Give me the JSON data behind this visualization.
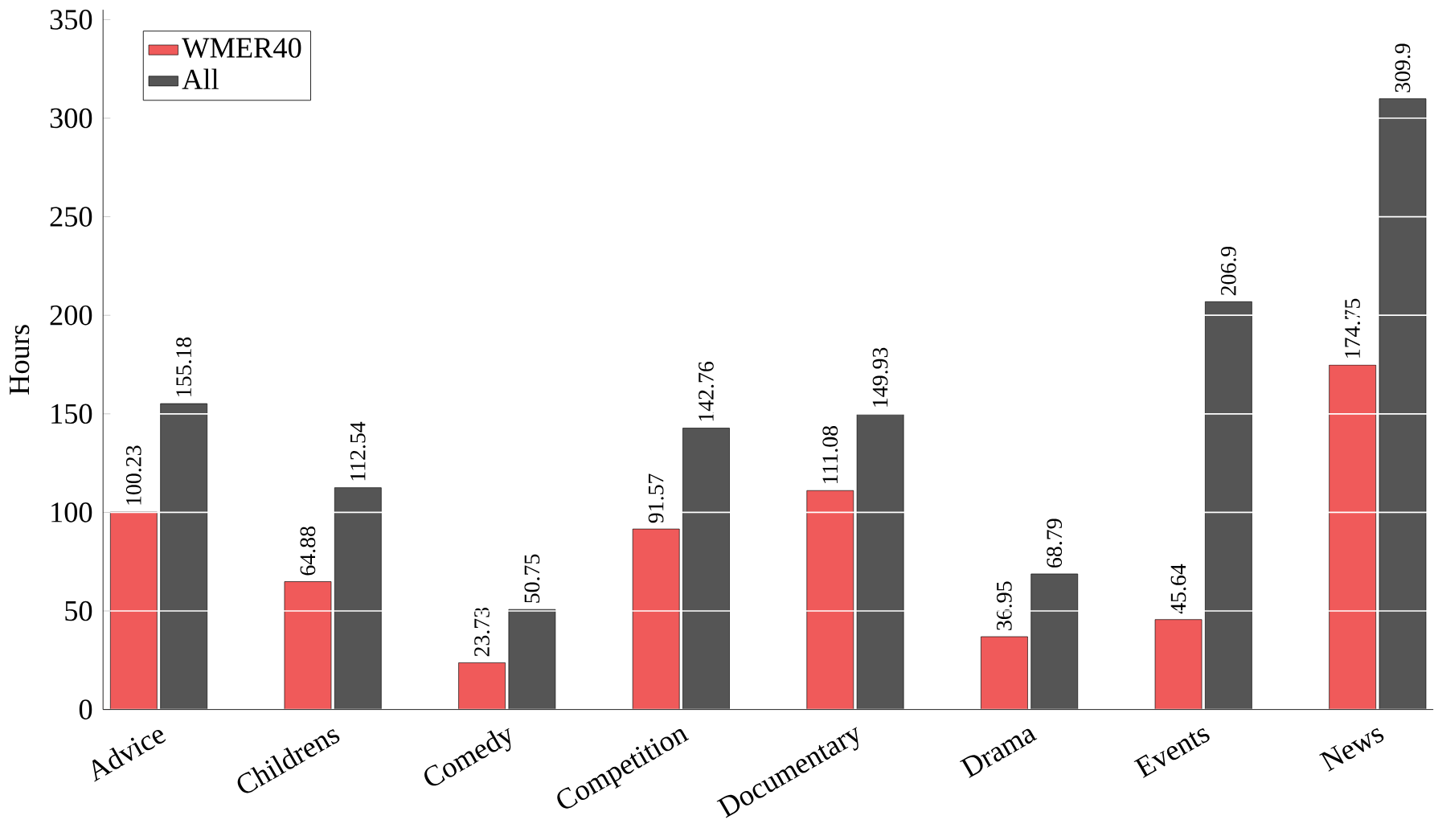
{
  "chart_data": {
    "type": "bar",
    "ylabel": "Hours",
    "categories": [
      "Advice",
      "Childrens",
      "Comedy",
      "Competition",
      "Documentary",
      "Drama",
      "Events",
      "News"
    ],
    "series": [
      {
        "name": "WMER40",
        "color": "#f05a5a",
        "values": [
          100.23,
          64.88,
          23.73,
          91.57,
          111.08,
          36.95,
          45.64,
          174.75
        ]
      },
      {
        "name": "All",
        "color": "#555555",
        "values": [
          155.18,
          112.54,
          50.75,
          142.76,
          149.93,
          68.79,
          206.9,
          309.9
        ]
      }
    ],
    "ylim": [
      0,
      355
    ],
    "yticks": [
      0,
      50,
      100,
      150,
      200,
      250,
      300,
      350
    ],
    "grid": "y",
    "legend": "top left",
    "data_labels": true
  }
}
